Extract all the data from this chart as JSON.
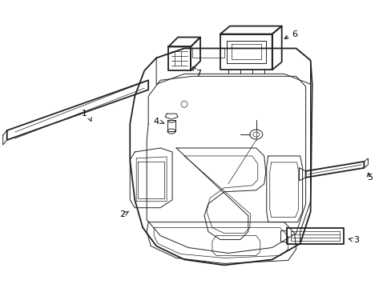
{
  "background_color": "#ffffff",
  "line_color": "#222222",
  "label_color": "#000000",
  "fig_width": 4.89,
  "fig_height": 3.6,
  "dpi": 100
}
